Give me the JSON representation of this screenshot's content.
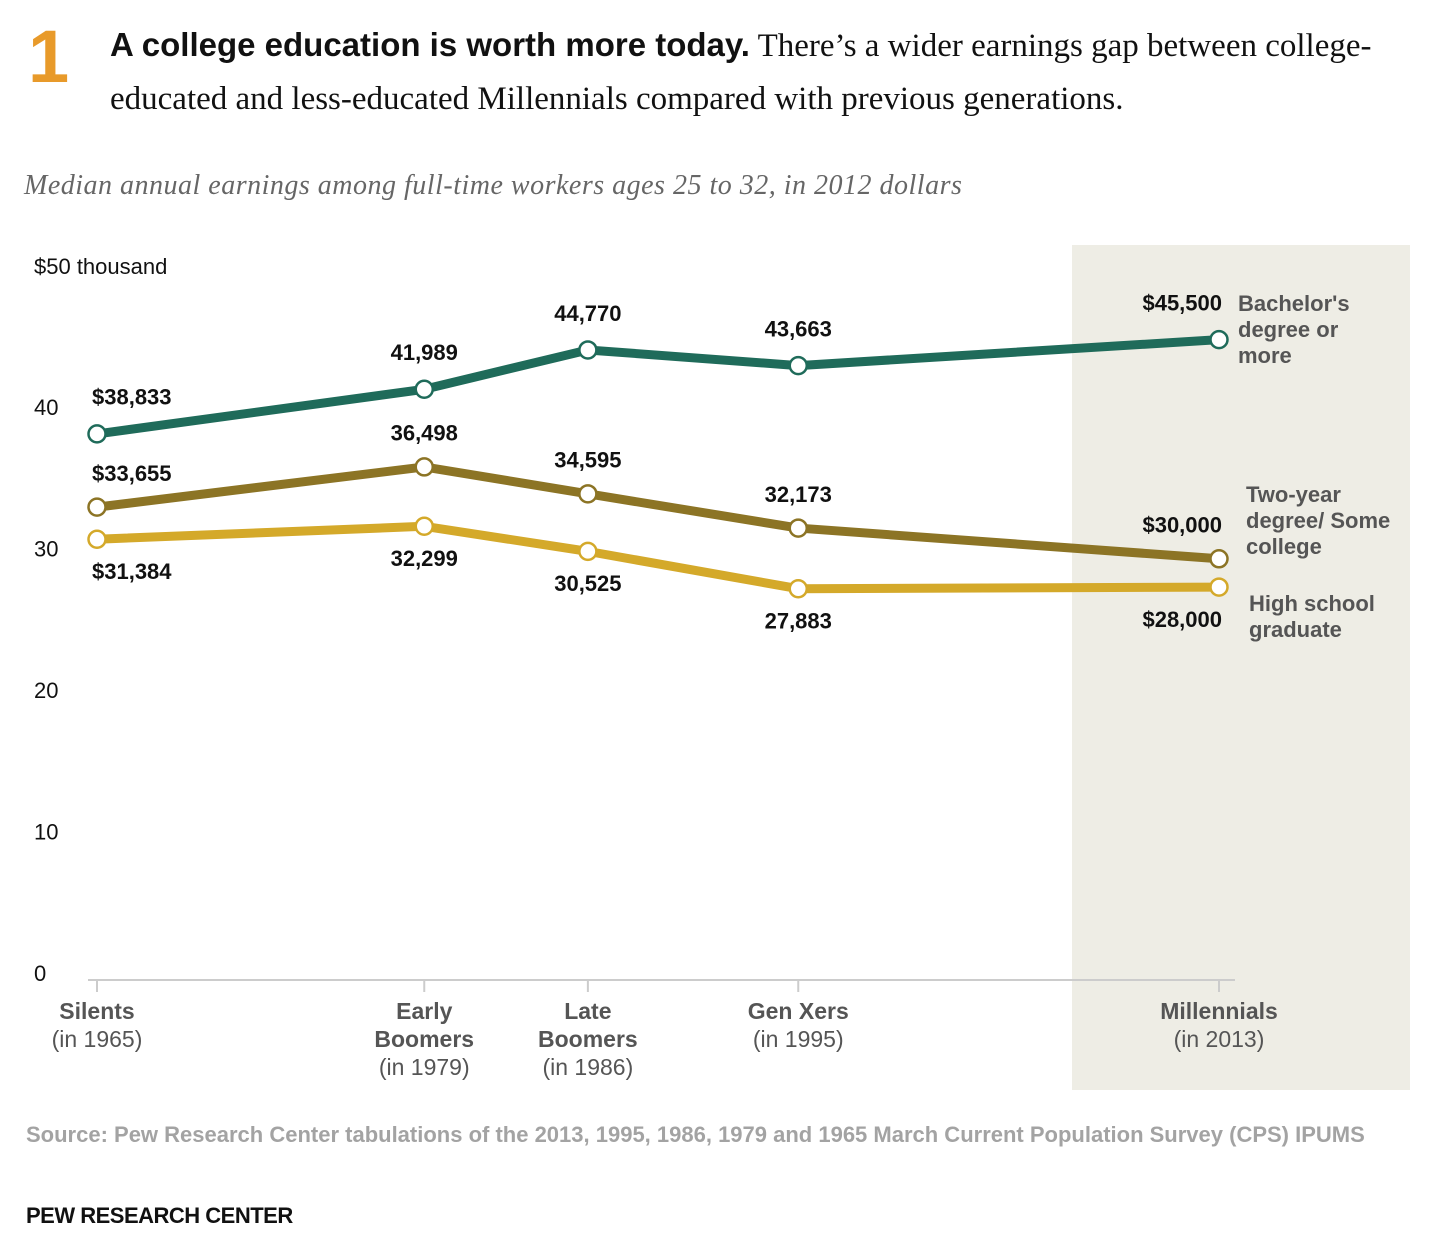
{
  "number": "1",
  "headline": "A college education is worth more today.",
  "intro": "There’s a wider earnings gap between college-educated and less-educated Millennials compared with previous generations.",
  "chart_data": {
    "type": "line",
    "subtitle": "Median annual earnings among full-time workers ages 25 to 32, in 2012 dollars",
    "categories": [
      "Silents",
      "Early Boomers",
      "Late Boomers",
      "Gen Xers",
      "Millennials"
    ],
    "category_notes": [
      "(in 1965)",
      "(in 1979)",
      "(in 1986)",
      "(in 1995)",
      "(in 2013)"
    ],
    "x": [
      1965,
      1979,
      1986,
      1995,
      2013
    ],
    "ylim": [
      0,
      50
    ],
    "yticks": [
      0,
      10,
      20,
      30,
      40,
      {
        "value": 50,
        "label": "$50 thousand"
      }
    ],
    "series": [
      {
        "name": "Bachelor's degree or more",
        "color": "#1f6b5a",
        "values": [
          38.833,
          41.989,
          44.77,
          43.663,
          45.5
        ],
        "value_labels": [
          "$38,833",
          "41,989",
          "44,770",
          "43,663",
          "$45,500"
        ]
      },
      {
        "name": "Two-year degree/ Some college",
        "color": "#8c7425",
        "values": [
          33.655,
          36.498,
          34.595,
          32.173,
          30.0
        ],
        "value_labels": [
          "$33,655",
          "36,498",
          "34,595",
          "32,173",
          "$30,000"
        ]
      },
      {
        "name": "High school graduate",
        "color": "#d4a92a",
        "values": [
          31.384,
          32.299,
          30.525,
          27.883,
          28.0
        ],
        "value_labels": [
          "$31,384",
          "32,299",
          "30,525",
          "27,883",
          "$28,000"
        ]
      }
    ],
    "source": "Source: Pew Research Center tabulations of the 2013, 1995, 1986, 1979 and 1965 March Current Population Survey (CPS) IPUMS",
    "footer": "PEW RESEARCH CENTER"
  }
}
